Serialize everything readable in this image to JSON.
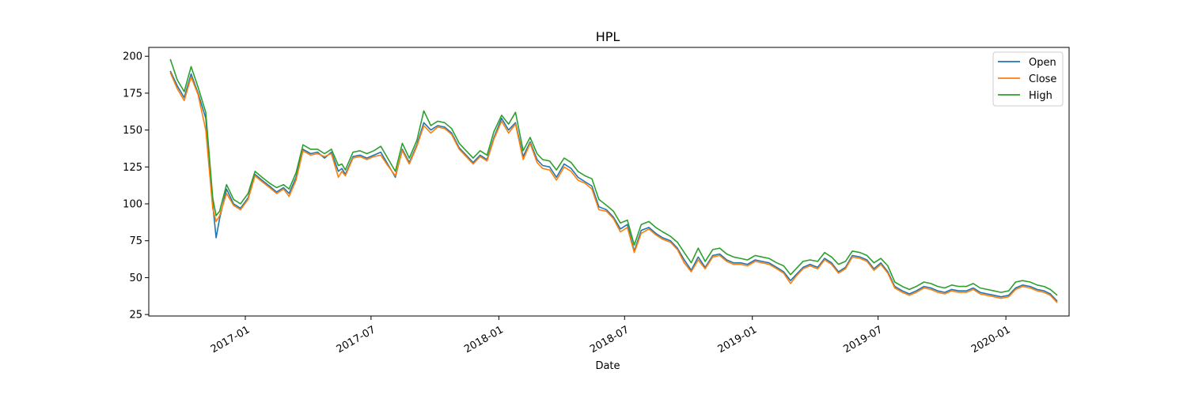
{
  "chart_data": {
    "type": "line",
    "title": "HPL",
    "xlabel": "Date",
    "ylabel": "",
    "x_axis": "date",
    "xlim": [
      "2016-08-15",
      "2020-04-01"
    ],
    "ylim": [
      24,
      206
    ],
    "x_tick_labels": [
      "2017-01",
      "2017-07",
      "2018-01",
      "2018-07",
      "2019-01",
      "2019-07",
      "2020-01"
    ],
    "y_ticks": [
      25,
      50,
      75,
      100,
      125,
      150,
      175,
      200
    ],
    "grid": false,
    "legend_position": "top-right",
    "colors": {
      "Open": "#1f77b4",
      "Close": "#ff7f0e",
      "High": "#2ca02c"
    },
    "x": [
      "2016-09-15",
      "2016-09-25",
      "2016-10-05",
      "2016-10-15",
      "2016-10-25",
      "2016-11-05",
      "2016-11-15",
      "2016-11-20",
      "2016-11-25",
      "2016-12-05",
      "2016-12-15",
      "2016-12-25",
      "2017-01-05",
      "2017-01-15",
      "2017-01-25",
      "2017-02-05",
      "2017-02-15",
      "2017-02-25",
      "2017-03-05",
      "2017-03-15",
      "2017-03-25",
      "2017-04-05",
      "2017-04-15",
      "2017-04-25",
      "2017-05-05",
      "2017-05-15",
      "2017-05-20",
      "2017-05-25",
      "2017-06-05",
      "2017-06-15",
      "2017-06-25",
      "2017-07-05",
      "2017-07-15",
      "2017-07-25",
      "2017-08-05",
      "2017-08-15",
      "2017-08-25",
      "2017-09-05",
      "2017-09-15",
      "2017-09-25",
      "2017-10-05",
      "2017-10-15",
      "2017-10-25",
      "2017-11-05",
      "2017-11-15",
      "2017-11-25",
      "2017-12-05",
      "2017-12-15",
      "2017-12-25",
      "2018-01-05",
      "2018-01-15",
      "2018-01-25",
      "2018-02-05",
      "2018-02-15",
      "2018-02-25",
      "2018-03-05",
      "2018-03-15",
      "2018-03-25",
      "2018-04-05",
      "2018-04-15",
      "2018-04-25",
      "2018-05-05",
      "2018-05-15",
      "2018-05-25",
      "2018-06-05",
      "2018-06-15",
      "2018-06-25",
      "2018-07-05",
      "2018-07-15",
      "2018-07-25",
      "2018-08-05",
      "2018-08-15",
      "2018-08-25",
      "2018-09-05",
      "2018-09-15",
      "2018-09-25",
      "2018-10-05",
      "2018-10-15",
      "2018-10-25",
      "2018-11-05",
      "2018-11-15",
      "2018-11-25",
      "2018-12-05",
      "2018-12-15",
      "2018-12-25",
      "2019-01-05",
      "2019-01-15",
      "2019-01-25",
      "2019-02-05",
      "2019-02-15",
      "2019-02-25",
      "2019-03-05",
      "2019-03-15",
      "2019-03-25",
      "2019-04-05",
      "2019-04-15",
      "2019-04-25",
      "2019-05-05",
      "2019-05-15",
      "2019-05-25",
      "2019-06-05",
      "2019-06-15",
      "2019-06-25",
      "2019-07-05",
      "2019-07-15",
      "2019-07-25",
      "2019-08-05",
      "2019-08-15",
      "2019-08-25",
      "2019-09-05",
      "2019-09-15",
      "2019-09-25",
      "2019-10-05",
      "2019-10-15",
      "2019-10-25",
      "2019-11-05",
      "2019-11-15",
      "2019-11-25",
      "2019-12-05",
      "2019-12-15",
      "2019-12-25",
      "2020-01-05",
      "2020-01-15",
      "2020-01-25",
      "2020-02-05",
      "2020-02-15",
      "2020-02-25",
      "2020-03-05",
      "2020-03-15"
    ],
    "series": [
      {
        "name": "Open",
        "values": [
          190,
          180,
          172,
          188,
          175,
          158,
          100,
          77,
          90,
          110,
          100,
          97,
          104,
          120,
          116,
          112,
          108,
          111,
          107,
          118,
          137,
          134,
          135,
          131,
          135,
          122,
          124,
          120,
          132,
          133,
          131,
          133,
          135,
          127,
          118,
          137,
          128,
          140,
          155,
          150,
          153,
          152,
          148,
          138,
          133,
          128,
          133,
          130,
          145,
          158,
          150,
          155,
          132,
          142,
          130,
          126,
          125,
          118,
          127,
          124,
          118,
          115,
          112,
          98,
          96,
          91,
          83,
          86,
          68,
          82,
          84,
          80,
          77,
          75,
          70,
          62,
          55,
          64,
          57,
          65,
          66,
          62,
          60,
          60,
          59,
          62,
          61,
          60,
          57,
          54,
          48,
          52,
          57,
          59,
          57,
          63,
          60,
          54,
          57,
          65,
          64,
          62,
          56,
          60,
          54,
          44,
          41,
          39,
          41,
          44,
          43,
          41,
          40,
          42,
          41,
          41,
          43,
          40,
          39,
          38,
          37,
          38,
          43,
          45,
          44,
          42,
          41,
          39,
          34
        ]
      },
      {
        "name": "Close",
        "values": [
          189,
          178,
          170,
          186,
          174,
          150,
          97,
          88,
          92,
          107,
          99,
          96,
          103,
          119,
          115,
          111,
          107,
          110,
          105,
          116,
          136,
          133,
          134,
          132,
          134,
          118,
          122,
          119,
          131,
          132,
          130,
          132,
          133,
          126,
          119,
          136,
          127,
          139,
          153,
          148,
          152,
          151,
          147,
          137,
          132,
          127,
          132,
          129,
          144,
          156,
          148,
          154,
          130,
          141,
          128,
          124,
          123,
          116,
          125,
          122,
          116,
          114,
          110,
          96,
          95,
          90,
          81,
          84,
          67,
          80,
          83,
          79,
          76,
          74,
          69,
          60,
          54,
          62,
          56,
          64,
          65,
          61,
          59,
          59,
          58,
          61,
          60,
          59,
          56,
          53,
          46,
          51,
          56,
          58,
          56,
          62,
          59,
          53,
          56,
          64,
          63,
          61,
          55,
          59,
          53,
          43,
          40,
          38,
          40,
          43,
          42,
          40,
          39,
          41,
          40,
          40,
          42,
          39,
          38,
          37,
          36,
          37,
          42,
          44,
          43,
          41,
          40,
          38,
          33
        ]
      },
      {
        "name": "High",
        "values": [
          198,
          184,
          176,
          193,
          179,
          162,
          104,
          92,
          95,
          113,
          103,
          100,
          107,
          122,
          118,
          114,
          111,
          113,
          110,
          121,
          140,
          137,
          137,
          134,
          137,
          126,
          127,
          123,
          135,
          136,
          134,
          136,
          139,
          131,
          122,
          141,
          131,
          143,
          163,
          153,
          156,
          155,
          151,
          141,
          136,
          131,
          136,
          133,
          149,
          160,
          154,
          162,
          136,
          145,
          134,
          130,
          129,
          123,
          131,
          128,
          122,
          119,
          117,
          103,
          99,
          95,
          87,
          89,
          72,
          86,
          88,
          84,
          81,
          78,
          74,
          67,
          60,
          70,
          61,
          69,
          70,
          66,
          64,
          63,
          62,
          65,
          64,
          63,
          60,
          58,
          52,
          56,
          61,
          62,
          61,
          67,
          64,
          59,
          61,
          68,
          67,
          65,
          60,
          63,
          58,
          47,
          44,
          42,
          44,
          47,
          46,
          44,
          43,
          45,
          44,
          44,
          46,
          43,
          42,
          41,
          40,
          41,
          47,
          48,
          47,
          45,
          44,
          42,
          38
        ]
      }
    ]
  }
}
